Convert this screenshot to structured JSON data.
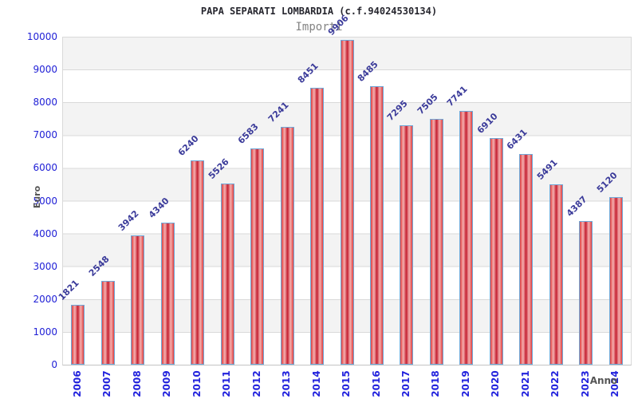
{
  "chart_data": {
    "type": "bar",
    "title": "PAPA SEPARATI LOMBARDIA (c.f.94024530134)",
    "subtitle": "Importi",
    "xlabel": "Anno",
    "ylabel": "Euro",
    "categories": [
      "2006",
      "2007",
      "2008",
      "2009",
      "2010",
      "2011",
      "2012",
      "2013",
      "2014",
      "2015",
      "2016",
      "2017",
      "2018",
      "2019",
      "2020",
      "2021",
      "2022",
      "2023",
      "2024"
    ],
    "values": [
      1821,
      2548,
      3942,
      4340,
      6240,
      5526,
      6583,
      7241,
      8451,
      9906,
      8485,
      7295,
      7505,
      7741,
      6910,
      6431,
      5491,
      4387,
      5120
    ],
    "ylim": [
      0,
      10000
    ],
    "y_ticks": [
      0,
      1000,
      2000,
      3000,
      4000,
      5000,
      6000,
      7000,
      8000,
      9000,
      10000
    ],
    "grid": "horizontal-bands",
    "legend_position": "none",
    "colors": {
      "bar_fill": "#e04040",
      "bar_fill_highlight": "#f5b0b0",
      "bar_fill_core": "#c41f30",
      "bar_border": "#6fa8d8",
      "value_label": "#3b3b9a",
      "tick_label": "#2121d6",
      "axis_title": "#555555",
      "band_gray": "#f3f3f3",
      "gridline": "#d9d9d9"
    }
  }
}
